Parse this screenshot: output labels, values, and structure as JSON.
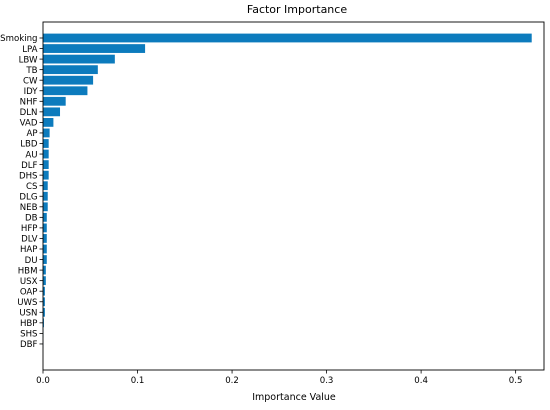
{
  "chart_data": {
    "type": "bar",
    "orientation": "horizontal",
    "title": "Factor Importance",
    "xlabel": "Importance Value",
    "ylabel": "",
    "xlim": [
      0,
      0.53
    ],
    "xticks": [
      0.0,
      0.1,
      0.2,
      0.3,
      0.4,
      0.5
    ],
    "xtick_labels": [
      "0.0",
      "0.1",
      "0.2",
      "0.3",
      "0.4",
      "0.5"
    ],
    "grid": false,
    "legend": "none",
    "bar_color": "#0c7bbd",
    "categories": [
      "Smoking",
      "LPA",
      "LBW",
      "TB",
      "CW",
      "IDY",
      "NHF",
      "DLN",
      "VAD",
      "AP",
      "LBD",
      "AU",
      "DLF",
      "DHS",
      "CS",
      "DLG",
      "NEB",
      "DB",
      "HFP",
      "DLV",
      "HAP",
      "DU",
      "HBM",
      "USX",
      "OAP",
      "UWS",
      "USN",
      "HBP",
      "SHS",
      "DBF"
    ],
    "values": [
      0.517,
      0.108,
      0.076,
      0.058,
      0.053,
      0.047,
      0.024,
      0.018,
      0.011,
      0.007,
      0.006,
      0.006,
      0.006,
      0.006,
      0.005,
      0.005,
      0.005,
      0.004,
      0.004,
      0.004,
      0.004,
      0.004,
      0.003,
      0.003,
      0.002,
      0.002,
      0.002,
      0.001,
      0.0005,
      0.0003
    ]
  }
}
